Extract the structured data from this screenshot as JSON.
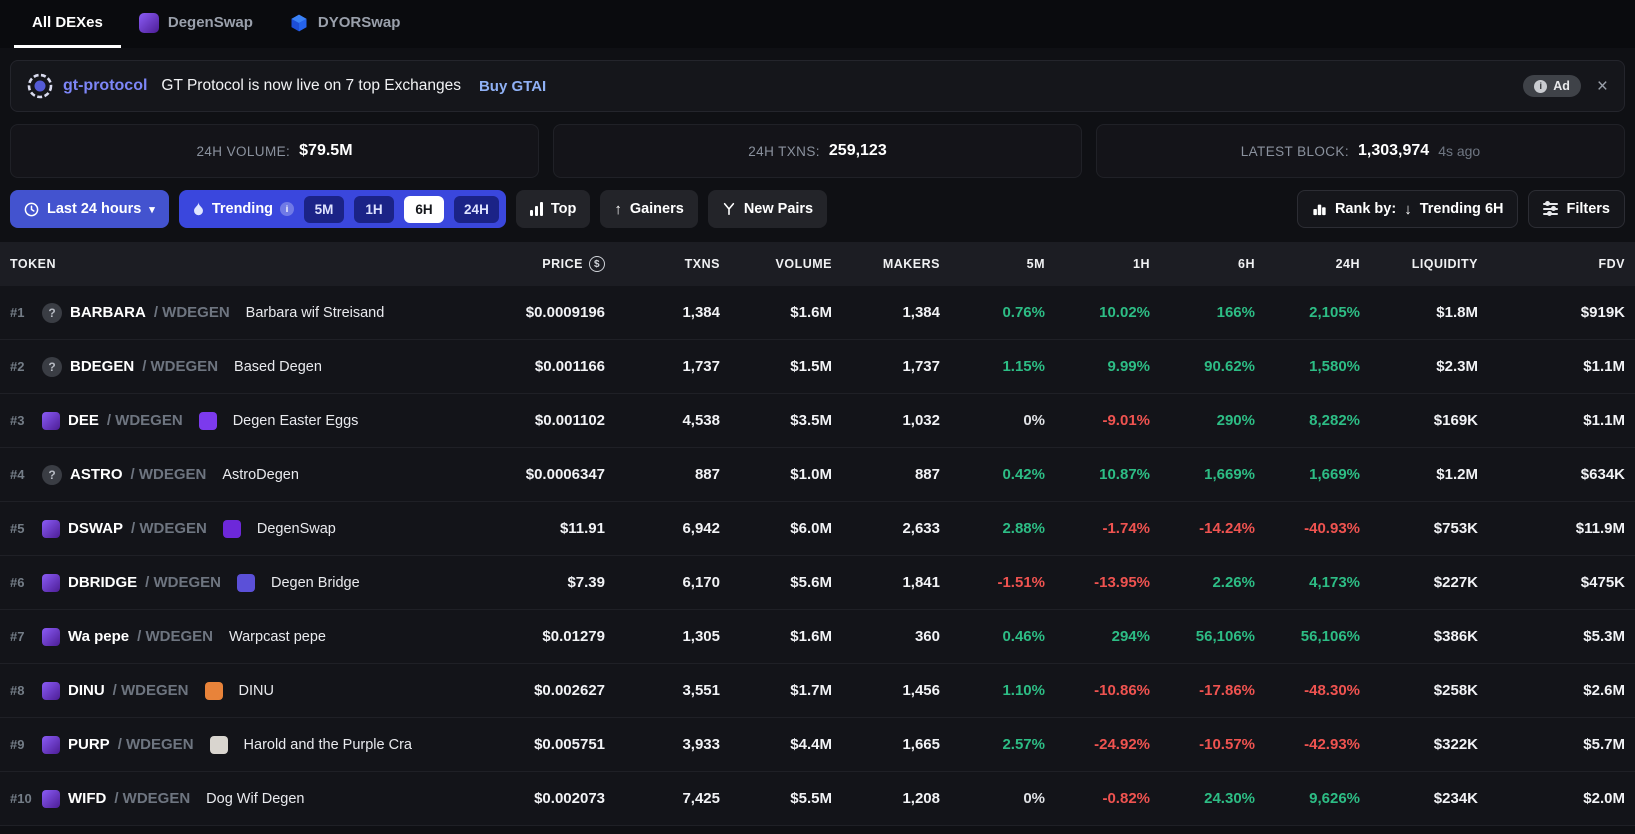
{
  "nav": {
    "tabs": [
      {
        "label": "All DEXes",
        "active": true
      },
      {
        "label": "DegenSwap",
        "active": false
      },
      {
        "label": "DYORSwap",
        "active": false
      }
    ]
  },
  "ad_banner": {
    "brand": "gt-protocol",
    "message": "GT Protocol is now live on 7 top Exchanges",
    "cta": "Buy GTAI",
    "ad_label": "Ad"
  },
  "stats": [
    {
      "label": "24H VOLUME:",
      "value": "$79.5M",
      "suffix": ""
    },
    {
      "label": "24H TXNS:",
      "value": "259,123",
      "suffix": ""
    },
    {
      "label": "LATEST BLOCK:",
      "value": "1,303,974",
      "suffix": "4s ago"
    }
  ],
  "filters": {
    "time_range": "Last 24 hours",
    "trending_label": "Trending",
    "trending_options": [
      {
        "label": "5M",
        "active": false
      },
      {
        "label": "1H",
        "active": false
      },
      {
        "label": "6H",
        "active": true
      },
      {
        "label": "24H",
        "active": false
      }
    ],
    "top_label": "Top",
    "gainers_label": "Gainers",
    "new_pairs_label": "New Pairs",
    "rank_by_label": "Rank by:",
    "rank_by_value": "Trending 6H",
    "filters_label": "Filters"
  },
  "icons": {
    "caret": "▾",
    "close": "×",
    "up_arrow": "↑",
    "down_arrow": "↓",
    "question_mark": "?",
    "info_letter": "i",
    "dollar": "$"
  },
  "colors": {
    "positive": "#2dbd85",
    "negative": "#ef5350",
    "accent_blue": "#4353cf",
    "brand_purple": "#7d86f8"
  },
  "table": {
    "columns": [
      "TOKEN",
      "PRICE",
      "TXNS",
      "VOLUME",
      "MAKERS",
      "5M",
      "1H",
      "6H",
      "24H",
      "LIQUIDITY",
      "FDV"
    ],
    "rows": [
      {
        "rank": "#1",
        "icon": "question",
        "symbol": "BARBARA",
        "pair": "/ WDEGEN",
        "name": "Barbara wif Streisand",
        "name_icon": null,
        "price": "$0.0009196",
        "txns": "1,384",
        "volume": "$1.6M",
        "makers": "1,384",
        "m5": {
          "v": "0.76%",
          "c": "pos"
        },
        "h1": {
          "v": "10.02%",
          "c": "pos"
        },
        "h6": {
          "v": "166%",
          "c": "pos"
        },
        "h24": {
          "v": "2,105%",
          "c": "pos"
        },
        "liquidity": "$1.8M",
        "fdv": "$919K"
      },
      {
        "rank": "#2",
        "icon": "question",
        "symbol": "BDEGEN",
        "pair": "/ WDEGEN",
        "name": "Based Degen",
        "name_icon": null,
        "price": "$0.001166",
        "txns": "1,737",
        "volume": "$1.5M",
        "makers": "1,737",
        "m5": {
          "v": "1.15%",
          "c": "pos"
        },
        "h1": {
          "v": "9.99%",
          "c": "pos"
        },
        "h6": {
          "v": "90.62%",
          "c": "pos"
        },
        "h24": {
          "v": "1,580%",
          "c": "pos"
        },
        "liquidity": "$2.3M",
        "fdv": "$1.1M"
      },
      {
        "rank": "#3",
        "icon": "degen",
        "symbol": "DEE",
        "pair": "/ WDEGEN",
        "name": "Degen Easter Eggs",
        "name_icon": "#7c3aed",
        "price": "$0.001102",
        "txns": "4,538",
        "volume": "$3.5M",
        "makers": "1,032",
        "m5": {
          "v": "0%",
          "c": "neutral"
        },
        "h1": {
          "v": "-9.01%",
          "c": "neg"
        },
        "h6": {
          "v": "290%",
          "c": "pos"
        },
        "h24": {
          "v": "8,282%",
          "c": "pos"
        },
        "liquidity": "$169K",
        "fdv": "$1.1M"
      },
      {
        "rank": "#4",
        "icon": "question",
        "symbol": "ASTRO",
        "pair": "/ WDEGEN",
        "name": "AstroDegen",
        "name_icon": null,
        "price": "$0.0006347",
        "txns": "887",
        "volume": "$1.0M",
        "makers": "887",
        "m5": {
          "v": "0.42%",
          "c": "pos"
        },
        "h1": {
          "v": "10.87%",
          "c": "pos"
        },
        "h6": {
          "v": "1,669%",
          "c": "pos"
        },
        "h24": {
          "v": "1,669%",
          "c": "pos"
        },
        "liquidity": "$1.2M",
        "fdv": "$634K"
      },
      {
        "rank": "#5",
        "icon": "degen",
        "symbol": "DSWAP",
        "pair": "/ WDEGEN",
        "name": "DegenSwap",
        "name_icon": "#6d28d9",
        "price": "$11.91",
        "txns": "6,942",
        "volume": "$6.0M",
        "makers": "2,633",
        "m5": {
          "v": "2.88%",
          "c": "pos"
        },
        "h1": {
          "v": "-1.74%",
          "c": "neg"
        },
        "h6": {
          "v": "-14.24%",
          "c": "neg"
        },
        "h24": {
          "v": "-40.93%",
          "c": "neg"
        },
        "liquidity": "$753K",
        "fdv": "$11.9M"
      },
      {
        "rank": "#6",
        "icon": "degen",
        "symbol": "DBRIDGE",
        "pair": "/ WDEGEN",
        "name": "Degen Bridge",
        "name_icon": "#5b50d8",
        "price": "$7.39",
        "txns": "6,170",
        "volume": "$5.6M",
        "makers": "1,841",
        "m5": {
          "v": "-1.51%",
          "c": "neg"
        },
        "h1": {
          "v": "-13.95%",
          "c": "neg"
        },
        "h6": {
          "v": "2.26%",
          "c": "pos"
        },
        "h24": {
          "v": "4,173%",
          "c": "pos"
        },
        "liquidity": "$227K",
        "fdv": "$475K"
      },
      {
        "rank": "#7",
        "icon": "degen",
        "symbol": "Wa pepe",
        "pair": "/ WDEGEN",
        "name": "Warpcast pepe",
        "name_icon": null,
        "price": "$0.01279",
        "txns": "1,305",
        "volume": "$1.6M",
        "makers": "360",
        "m5": {
          "v": "0.46%",
          "c": "pos"
        },
        "h1": {
          "v": "294%",
          "c": "pos"
        },
        "h6": {
          "v": "56,106%",
          "c": "pos"
        },
        "h24": {
          "v": "56,106%",
          "c": "pos"
        },
        "liquidity": "$386K",
        "fdv": "$5.3M"
      },
      {
        "rank": "#8",
        "icon": "degen",
        "symbol": "DINU",
        "pair": "/ WDEGEN",
        "name": "DINU",
        "name_icon": "#e8833a",
        "price": "$0.002627",
        "txns": "3,551",
        "volume": "$1.7M",
        "makers": "1,456",
        "m5": {
          "v": "1.10%",
          "c": "pos"
        },
        "h1": {
          "v": "-10.86%",
          "c": "neg"
        },
        "h6": {
          "v": "-17.86%",
          "c": "neg"
        },
        "h24": {
          "v": "-48.30%",
          "c": "neg"
        },
        "liquidity": "$258K",
        "fdv": "$2.6M"
      },
      {
        "rank": "#9",
        "icon": "degen",
        "symbol": "PURP",
        "pair": "/ WDEGEN",
        "name": "Harold and the Purple Cra",
        "name_icon": "#d9d5cf",
        "price": "$0.005751",
        "txns": "3,933",
        "volume": "$4.4M",
        "makers": "1,665",
        "m5": {
          "v": "2.57%",
          "c": "pos"
        },
        "h1": {
          "v": "-24.92%",
          "c": "neg"
        },
        "h6": {
          "v": "-10.57%",
          "c": "neg"
        },
        "h24": {
          "v": "-42.93%",
          "c": "neg"
        },
        "liquidity": "$322K",
        "fdv": "$5.7M"
      },
      {
        "rank": "#10",
        "icon": "degen",
        "symbol": "WIFD",
        "pair": "/ WDEGEN",
        "name": "Dog Wif Degen",
        "name_icon": null,
        "price": "$0.002073",
        "txns": "7,425",
        "volume": "$5.5M",
        "makers": "1,208",
        "m5": {
          "v": "0%",
          "c": "neutral"
        },
        "h1": {
          "v": "-0.82%",
          "c": "neg"
        },
        "h6": {
          "v": "24.30%",
          "c": "pos"
        },
        "h24": {
          "v": "9,626%",
          "c": "pos"
        },
        "liquidity": "$234K",
        "fdv": "$2.0M"
      }
    ]
  }
}
